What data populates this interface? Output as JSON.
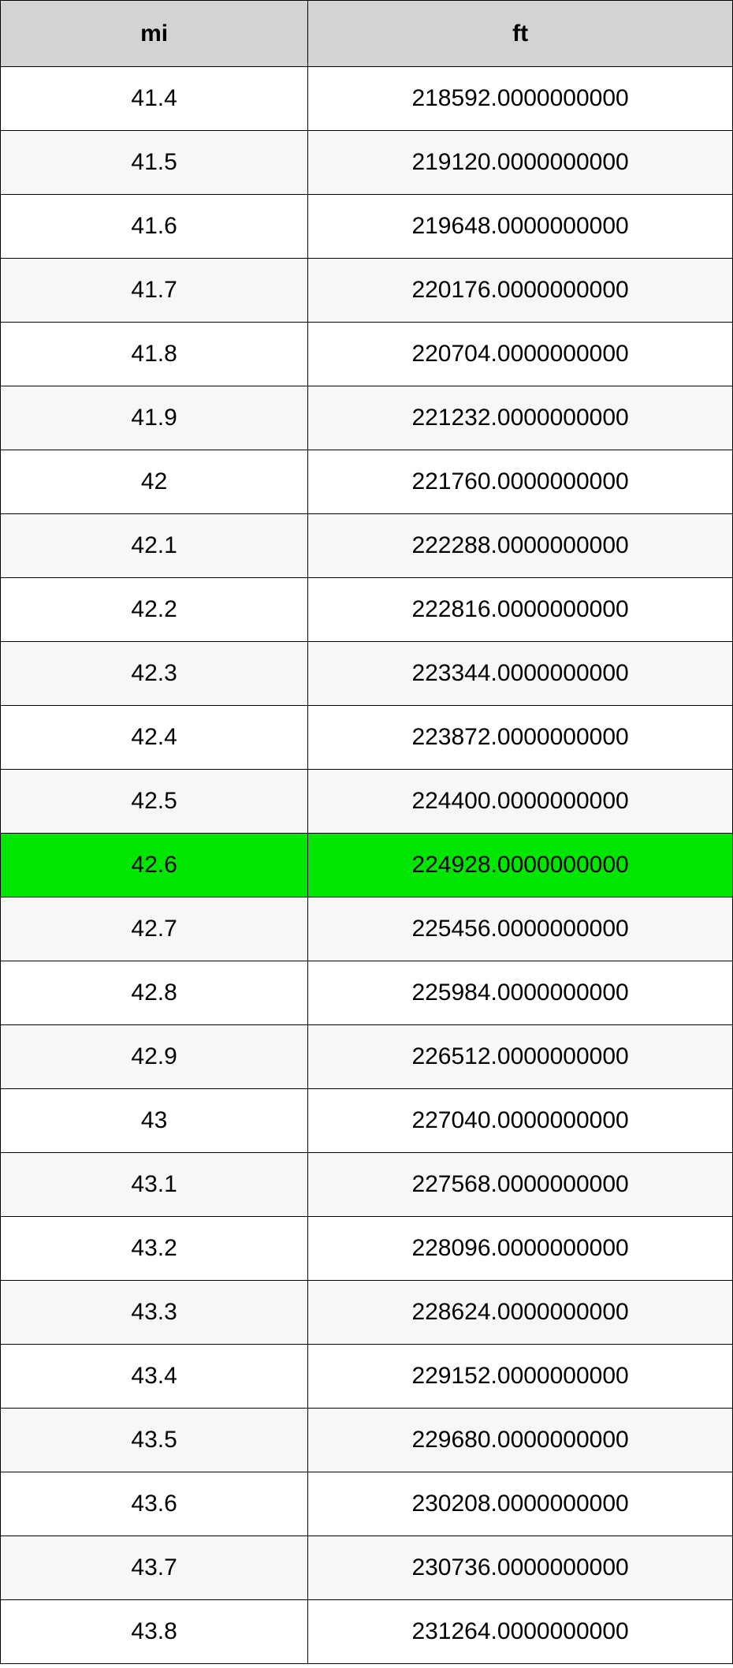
{
  "table": {
    "type": "table",
    "columns": [
      "mi",
      "ft"
    ],
    "column_widths": [
      "42%",
      "58%"
    ],
    "header_bg": "#d3d3d3",
    "header_fontsize": 30,
    "header_fontweight": "bold",
    "cell_fontsize": 30,
    "border_color": "#000000",
    "odd_row_bg": "#ffffff",
    "even_row_bg": "#f7f7f7",
    "highlight_bg": "#00e600",
    "highlight_row_index": 12,
    "rows": [
      [
        "41.4",
        "218592.0000000000"
      ],
      [
        "41.5",
        "219120.0000000000"
      ],
      [
        "41.6",
        "219648.0000000000"
      ],
      [
        "41.7",
        "220176.0000000000"
      ],
      [
        "41.8",
        "220704.0000000000"
      ],
      [
        "41.9",
        "221232.0000000000"
      ],
      [
        "42",
        "221760.0000000000"
      ],
      [
        "42.1",
        "222288.0000000000"
      ],
      [
        "42.2",
        "222816.0000000000"
      ],
      [
        "42.3",
        "223344.0000000000"
      ],
      [
        "42.4",
        "223872.0000000000"
      ],
      [
        "42.5",
        "224400.0000000000"
      ],
      [
        "42.6",
        "224928.0000000000"
      ],
      [
        "42.7",
        "225456.0000000000"
      ],
      [
        "42.8",
        "225984.0000000000"
      ],
      [
        "42.9",
        "226512.0000000000"
      ],
      [
        "43",
        "227040.0000000000"
      ],
      [
        "43.1",
        "227568.0000000000"
      ],
      [
        "43.2",
        "228096.0000000000"
      ],
      [
        "43.3",
        "228624.0000000000"
      ],
      [
        "43.4",
        "229152.0000000000"
      ],
      [
        "43.5",
        "229680.0000000000"
      ],
      [
        "43.6",
        "230208.0000000000"
      ],
      [
        "43.7",
        "230736.0000000000"
      ],
      [
        "43.8",
        "231264.0000000000"
      ]
    ]
  }
}
